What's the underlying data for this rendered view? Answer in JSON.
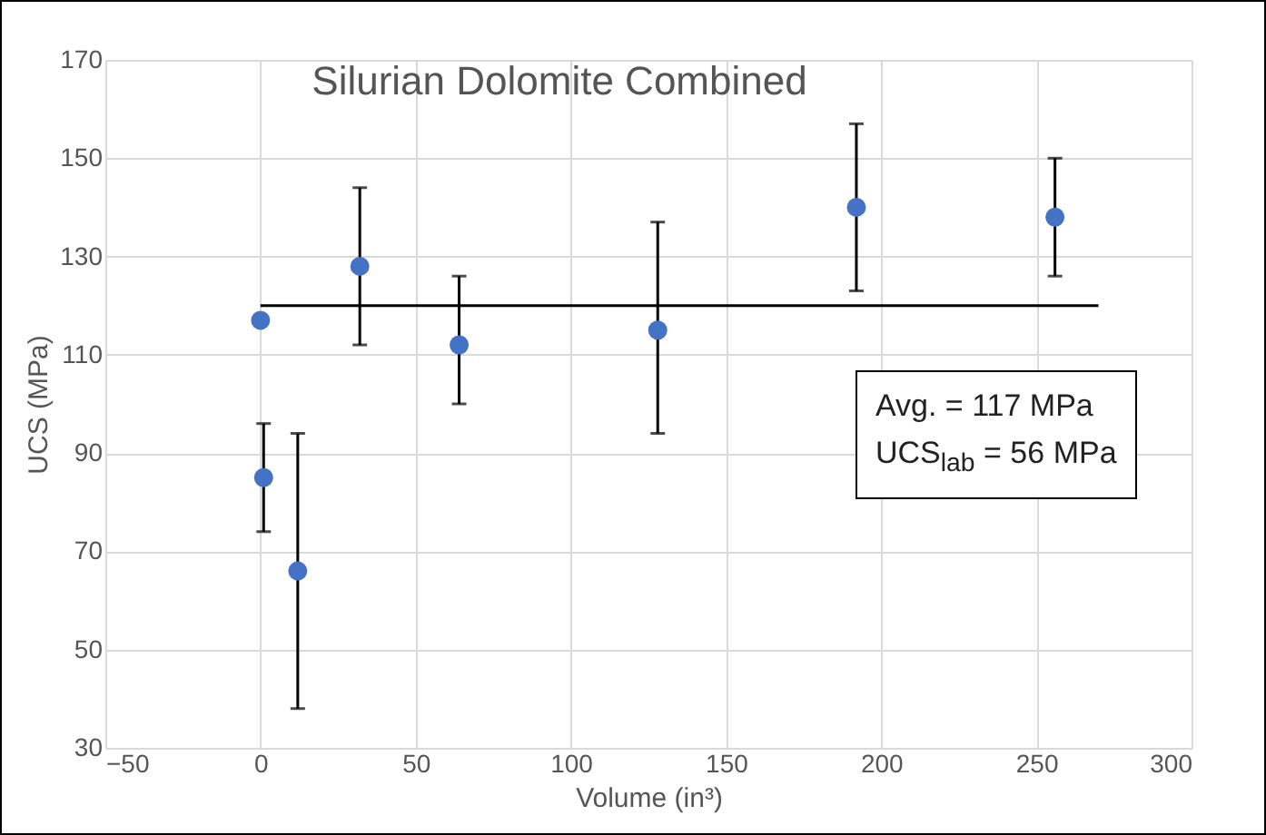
{
  "chart_data": {
    "type": "scatter",
    "title": "Silurian Dolomite Combined",
    "xlabel": "Volume (in³)",
    "ylabel": "UCS (MPa)",
    "x": [
      0,
      1,
      12,
      32,
      64,
      128,
      192,
      256
    ],
    "series": [
      {
        "color": "#4472c4",
        "marker": "circle",
        "values": [
          117,
          85,
          66,
          128,
          112,
          115,
          140,
          138
        ],
        "errors": [
          null,
          [
            74,
            96
          ],
          [
            38,
            94
          ],
          [
            112,
            144
          ],
          [
            100,
            126
          ],
          [
            94,
            137
          ],
          [
            123,
            157
          ],
          [
            126,
            150
          ]
        ]
      },
      {
        "type": "line",
        "color": "#000000",
        "marker": "none",
        "line_style": "solid",
        "x": [
          0,
          270
        ],
        "values": [
          120,
          120
        ]
      }
    ],
    "xlim": [
      -50,
      300
    ],
    "xticks": [
      -50,
      0,
      50,
      100,
      150,
      200,
      250,
      300
    ],
    "ylim": [
      30,
      170
    ],
    "yticks": [
      30,
      50,
      70,
      90,
      110,
      130,
      150,
      170
    ],
    "grid": true,
    "annotations": [
      "Avg. = 117 MPa",
      "UCS$_{lab}$ = 56 MPa"
    ]
  }
}
